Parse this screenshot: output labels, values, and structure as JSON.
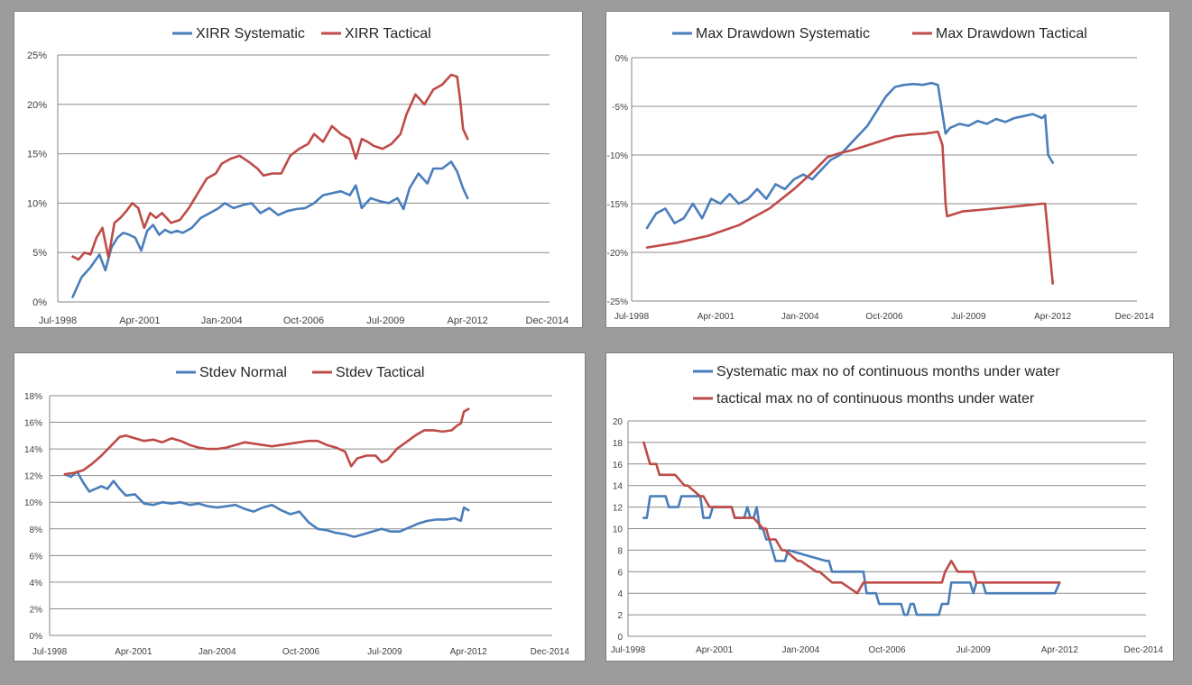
{
  "colors": {
    "systematic": "#4a7ebb",
    "tactical": "#be4b48",
    "grid": "#8c8c8c"
  },
  "chart_data": [
    {
      "type": "line",
      "legend": [
        "XIRR Systematic",
        "XIRR Tactical"
      ],
      "legend_position": "top",
      "grid": true,
      "xlim": [
        1998.5,
        2015.0
      ],
      "x_ticks": [
        1998.5,
        2001.25,
        2004.0,
        2006.75,
        2009.5,
        2012.25,
        2014.92
      ],
      "x_tick_labels": [
        "Jul-1998",
        "Apr-2001",
        "Jan-2004",
        "Oct-2006",
        "Jul-2009",
        "Apr-2012",
        "Dec-2014"
      ],
      "ylim": [
        0,
        25
      ],
      "y_ticks": [
        0,
        5,
        10,
        15,
        20,
        25
      ],
      "y_tick_labels": [
        "0%",
        "5%",
        "10%",
        "15%",
        "20%",
        "25%"
      ],
      "series": [
        {
          "name": "XIRR Systematic",
          "x": [
            1999.0,
            1999.3,
            1999.6,
            1999.9,
            2000.1,
            2000.3,
            2000.5,
            2000.7,
            2000.9,
            2001.1,
            2001.3,
            2001.5,
            2001.7,
            2001.9,
            2002.1,
            2002.3,
            2002.5,
            2002.7,
            2003.0,
            2003.3,
            2003.6,
            2003.9,
            2004.1,
            2004.4,
            2004.7,
            2005.0,
            2005.3,
            2005.6,
            2005.9,
            2006.2,
            2006.5,
            2006.8,
            2007.1,
            2007.4,
            2007.7,
            2008.0,
            2008.3,
            2008.5,
            2008.7,
            2009.0,
            2009.3,
            2009.6,
            2009.9,
            2010.1,
            2010.3,
            2010.6,
            2010.9,
            2011.1,
            2011.4,
            2011.7,
            2011.9,
            2012.1,
            2012.25
          ],
          "y": [
            0.5,
            2.5,
            3.5,
            4.8,
            3.2,
            5.5,
            6.5,
            7.0,
            6.8,
            6.5,
            5.2,
            7.2,
            7.8,
            6.8,
            7.3,
            7.0,
            7.2,
            7.0,
            7.5,
            8.5,
            9.0,
            9.5,
            10.0,
            9.5,
            9.8,
            10.0,
            9.0,
            9.5,
            8.8,
            9.2,
            9.4,
            9.5,
            10.0,
            10.8,
            11.0,
            11.2,
            10.8,
            11.8,
            9.5,
            10.5,
            10.2,
            10.0,
            10.5,
            9.4,
            11.5,
            13.0,
            12.0,
            13.5,
            13.5,
            14.2,
            13.2,
            11.5,
            10.5
          ]
        },
        {
          "name": "XIRR Tactical",
          "x": [
            1999.0,
            1999.2,
            1999.4,
            1999.6,
            1999.8,
            2000.0,
            2000.2,
            2000.4,
            2000.6,
            2000.8,
            2001.0,
            2001.2,
            2001.4,
            2001.6,
            2001.8,
            2002.0,
            2002.3,
            2002.6,
            2002.9,
            2003.2,
            2003.5,
            2003.8,
            2004.0,
            2004.3,
            2004.6,
            2004.9,
            2005.2,
            2005.4,
            2005.7,
            2006.0,
            2006.3,
            2006.6,
            2006.9,
            2007.1,
            2007.4,
            2007.7,
            2008.0,
            2008.3,
            2008.5,
            2008.7,
            2008.9,
            2009.1,
            2009.4,
            2009.7,
            2010.0,
            2010.2,
            2010.5,
            2010.8,
            2011.1,
            2011.4,
            2011.7,
            2011.9,
            2012.0,
            2012.1,
            2012.25
          ],
          "y": [
            4.6,
            4.3,
            5.0,
            4.8,
            6.5,
            7.5,
            4.5,
            8.0,
            8.5,
            9.2,
            10.0,
            9.5,
            7.5,
            9.0,
            8.5,
            9.0,
            8.0,
            8.3,
            9.5,
            11.0,
            12.5,
            13.0,
            14.0,
            14.5,
            14.8,
            14.2,
            13.5,
            12.8,
            13.0,
            13.0,
            14.8,
            15.5,
            16.0,
            17.0,
            16.2,
            17.8,
            17.0,
            16.5,
            14.5,
            16.5,
            16.2,
            15.8,
            15.5,
            16.0,
            17.0,
            19.0,
            21.0,
            20.0,
            21.5,
            22.0,
            23.0,
            22.8,
            20.5,
            17.5,
            16.5
          ]
        }
      ]
    },
    {
      "type": "line",
      "legend": [
        "Max Drawdown Systematic",
        "Max Drawdown Tactical"
      ],
      "legend_position": "top",
      "grid": true,
      "xlim": [
        1998.5,
        2015.0
      ],
      "x_ticks": [
        1998.5,
        2001.25,
        2004.0,
        2006.75,
        2009.5,
        2012.25,
        2014.92
      ],
      "x_tick_labels": [
        "Jul-1998",
        "Apr-2001",
        "Jan-2004",
        "Oct-2006",
        "Jul-2009",
        "Apr-2012",
        "Dec-2014"
      ],
      "ylim": [
        -25,
        0
      ],
      "y_ticks": [
        -25,
        -20,
        -15,
        -10,
        -5,
        0
      ],
      "y_tick_labels": [
        "-25%",
        "-20%",
        "-15%",
        "-10%",
        "-5%",
        "0%"
      ],
      "series": [
        {
          "name": "Max Drawdown Systematic",
          "x": [
            1999.0,
            1999.3,
            1999.6,
            1999.9,
            2000.2,
            2000.5,
            2000.8,
            2001.1,
            2001.4,
            2001.7,
            2002.0,
            2002.3,
            2002.6,
            2002.9,
            2003.2,
            2003.5,
            2003.8,
            2004.1,
            2004.4,
            2004.7,
            2005.0,
            2005.3,
            2005.6,
            2005.9,
            2006.2,
            2006.5,
            2006.8,
            2007.1,
            2007.4,
            2007.7,
            2008.0,
            2008.3,
            2008.5,
            2008.6,
            2008.75,
            2008.9,
            2009.2,
            2009.5,
            2009.8,
            2010.1,
            2010.4,
            2010.7,
            2011.0,
            2011.3,
            2011.6,
            2011.9,
            2012.0,
            2012.1,
            2012.25
          ],
          "y": [
            -17.5,
            -16.0,
            -15.5,
            -17.0,
            -16.5,
            -15.0,
            -16.5,
            -14.5,
            -15.0,
            -14.0,
            -15.0,
            -14.5,
            -13.5,
            -14.5,
            -13.0,
            -13.5,
            -12.5,
            -12.0,
            -12.5,
            -11.5,
            -10.5,
            -10.0,
            -9.0,
            -8.0,
            -7.0,
            -5.5,
            -4.0,
            -3.0,
            -2.8,
            -2.7,
            -2.8,
            -2.6,
            -2.8,
            -4.8,
            -7.8,
            -7.2,
            -6.8,
            -7.0,
            -6.5,
            -6.8,
            -6.3,
            -6.6,
            -6.2,
            -6.0,
            -5.8,
            -6.2,
            -5.9,
            -10.0,
            -10.8
          ]
        },
        {
          "name": "Max Drawdown Tactical",
          "x": [
            1999.0,
            2000.0,
            2001.0,
            2002.0,
            2003.0,
            2003.8,
            2004.4,
            2004.9,
            2005.3,
            2005.7,
            2006.2,
            2006.7,
            2007.1,
            2007.6,
            2008.1,
            2008.5,
            2008.6,
            2008.65,
            2008.75,
            2008.8,
            2009.3,
            2010.0,
            2011.0,
            2011.9,
            2012.0,
            2012.25
          ],
          "y": [
            -19.5,
            -19.0,
            -18.3,
            -17.2,
            -15.5,
            -13.5,
            -11.8,
            -10.2,
            -9.8,
            -9.5,
            -9.0,
            -8.5,
            -8.1,
            -7.9,
            -7.8,
            -7.6,
            -8.5,
            -9.0,
            -15.0,
            -16.3,
            -15.8,
            -15.6,
            -15.3,
            -15.0,
            -15.0,
            -23.2
          ]
        }
      ]
    },
    {
      "type": "line",
      "legend": [
        "Stdev Normal",
        "Stdev Tactical"
      ],
      "legend_position": "top",
      "grid": true,
      "xlim": [
        1998.5,
        2015.0
      ],
      "x_ticks": [
        1998.5,
        2001.25,
        2004.0,
        2006.75,
        2009.5,
        2012.25,
        2014.92
      ],
      "x_tick_labels": [
        "Jul-1998",
        "Apr-2001",
        "Jan-2004",
        "Oct-2006",
        "Jul-2009",
        "Apr-2012",
        "Dec-2014"
      ],
      "ylim": [
        0,
        18
      ],
      "y_ticks": [
        0,
        2,
        4,
        6,
        8,
        10,
        12,
        14,
        16,
        18
      ],
      "y_tick_labels": [
        "0%",
        "2%",
        "4%",
        "6%",
        "8%",
        "10%",
        "12%",
        "14%",
        "16%",
        "18%"
      ],
      "series": [
        {
          "name": "Stdev Normal",
          "x": [
            1999.0,
            1999.2,
            1999.4,
            1999.6,
            1999.8,
            2000.0,
            2000.2,
            2000.4,
            2000.6,
            2000.8,
            2001.0,
            2001.3,
            2001.6,
            2001.9,
            2002.2,
            2002.5,
            2002.8,
            2003.1,
            2003.4,
            2003.7,
            2004.0,
            2004.3,
            2004.6,
            2004.9,
            2005.2,
            2005.5,
            2005.8,
            2006.1,
            2006.4,
            2006.7,
            2007.0,
            2007.3,
            2007.6,
            2007.9,
            2008.2,
            2008.5,
            2008.8,
            2009.1,
            2009.4,
            2009.7,
            2010.0,
            2010.3,
            2010.6,
            2010.9,
            2011.2,
            2011.5,
            2011.8,
            2012.0,
            2012.1,
            2012.25
          ],
          "y": [
            12.1,
            11.9,
            12.3,
            11.5,
            10.8,
            11.0,
            11.2,
            11.0,
            11.6,
            11.0,
            10.5,
            10.6,
            9.9,
            9.8,
            10.0,
            9.9,
            10.0,
            9.8,
            9.9,
            9.7,
            9.6,
            9.7,
            9.8,
            9.5,
            9.3,
            9.6,
            9.8,
            9.4,
            9.1,
            9.3,
            8.5,
            8.0,
            7.9,
            7.7,
            7.6,
            7.4,
            7.6,
            7.8,
            8.0,
            7.8,
            7.8,
            8.1,
            8.4,
            8.6,
            8.7,
            8.7,
            8.8,
            8.6,
            9.6,
            9.4
          ]
        },
        {
          "name": "Stdev Tactical",
          "x": [
            1999.0,
            1999.3,
            1999.6,
            1999.9,
            2000.2,
            2000.5,
            2000.8,
            2001.0,
            2001.3,
            2001.6,
            2001.9,
            2002.2,
            2002.5,
            2002.8,
            2003.1,
            2003.4,
            2003.7,
            2004.0,
            2004.3,
            2004.6,
            2004.9,
            2005.2,
            2005.5,
            2005.8,
            2006.1,
            2006.4,
            2006.7,
            2007.0,
            2007.3,
            2007.6,
            2007.9,
            2008.2,
            2008.4,
            2008.6,
            2008.9,
            2009.2,
            2009.4,
            2009.6,
            2009.9,
            2010.2,
            2010.5,
            2010.8,
            2011.1,
            2011.4,
            2011.7,
            2011.9,
            2012.0,
            2012.1,
            2012.25
          ],
          "y": [
            12.1,
            12.2,
            12.4,
            12.9,
            13.5,
            14.2,
            14.9,
            15.0,
            14.8,
            14.6,
            14.7,
            14.5,
            14.8,
            14.6,
            14.3,
            14.1,
            14.0,
            14.0,
            14.1,
            14.3,
            14.5,
            14.4,
            14.3,
            14.2,
            14.3,
            14.4,
            14.5,
            14.6,
            14.6,
            14.3,
            14.1,
            13.8,
            12.7,
            13.3,
            13.5,
            13.5,
            13.0,
            13.2,
            14.0,
            14.5,
            15.0,
            15.4,
            15.4,
            15.3,
            15.4,
            15.8,
            15.9,
            16.8,
            17.0
          ]
        }
      ]
    },
    {
      "type": "line",
      "legend": [
        "Systematic max no of continuous months under water",
        "tactical max no of continuous months under water"
      ],
      "legend_position": "top",
      "grid": true,
      "xlim": [
        1998.5,
        2015.0
      ],
      "x_ticks": [
        1998.5,
        2001.25,
        2004.0,
        2006.75,
        2009.5,
        2012.25,
        2014.92
      ],
      "x_tick_labels": [
        "Jul-1998",
        "Apr-2001",
        "Jan-2004",
        "Oct-2006",
        "Jul-2009",
        "Apr-2012",
        "Dec-2014"
      ],
      "ylim": [
        0,
        20
      ],
      "y_ticks": [
        0,
        2,
        4,
        6,
        8,
        10,
        12,
        14,
        16,
        18,
        20
      ],
      "y_tick_labels": [
        "0",
        "2",
        "4",
        "6",
        "8",
        "10",
        "12",
        "14",
        "16",
        "18",
        "20"
      ],
      "series": [
        {
          "name": "Systematic max no of continuous months under water",
          "x": [
            1999.0,
            1999.1,
            1999.2,
            1999.3,
            1999.4,
            1999.7,
            1999.8,
            2000.1,
            2000.2,
            2000.8,
            2000.9,
            2001.1,
            2001.2,
            2001.8,
            2001.9,
            2002.2,
            2002.3,
            2002.4,
            2002.5,
            2002.6,
            2002.7,
            2002.8,
            2002.9,
            2003.0,
            2003.1,
            2003.2,
            2003.3,
            2003.5,
            2003.6,
            2004.8,
            2004.9,
            2005.0,
            2005.1,
            2006.0,
            2006.1,
            2006.4,
            2006.5,
            2007.2,
            2007.3,
            2007.4,
            2007.5,
            2007.6,
            2007.7,
            2007.8,
            2007.9,
            2008.4,
            2008.5,
            2008.7,
            2008.8,
            2009.3,
            2009.4,
            2009.5,
            2009.6,
            2009.8,
            2009.9,
            2012.1,
            2012.25
          ],
          "y": [
            11,
            11,
            13,
            13,
            13,
            13,
            12,
            12,
            13,
            13,
            11,
            11,
            12,
            12,
            11,
            11,
            12,
            11,
            11,
            12,
            10,
            10,
            9,
            9,
            8,
            7,
            7,
            7,
            8,
            7,
            7,
            6,
            6,
            6,
            4,
            4,
            3,
            3,
            2,
            2,
            3,
            3,
            2,
            2,
            2,
            2,
            3,
            3,
            5,
            5,
            5,
            4,
            5,
            5,
            4,
            4,
            5
          ]
        },
        {
          "name": "tactical max no of continuous months under water",
          "x": [
            1999.0,
            1999.1,
            1999.2,
            1999.4,
            1999.5,
            1999.8,
            2000.0,
            2000.3,
            2000.4,
            2000.8,
            2000.9,
            2001.1,
            2001.2,
            2001.8,
            2001.9,
            2002.3,
            2002.5,
            2002.8,
            2002.9,
            2003.0,
            2003.2,
            2003.4,
            2003.5,
            2003.9,
            2004.0,
            2004.5,
            2004.6,
            2005.0,
            2005.2,
            2005.3,
            2005.8,
            2006.0,
            2006.1,
            2008.5,
            2008.6,
            2008.8,
            2009.0,
            2009.1,
            2009.5,
            2009.6,
            2010.0,
            2012.25
          ],
          "y": [
            18,
            17,
            16,
            16,
            15,
            15,
            15,
            14,
            14,
            13,
            13,
            12,
            12,
            12,
            11,
            11,
            11,
            10,
            10,
            9,
            9,
            8,
            8,
            7,
            7,
            6,
            6,
            5,
            5,
            5,
            4,
            5,
            5,
            5,
            6,
            7,
            6,
            6,
            6,
            5,
            5,
            5
          ]
        }
      ]
    }
  ]
}
